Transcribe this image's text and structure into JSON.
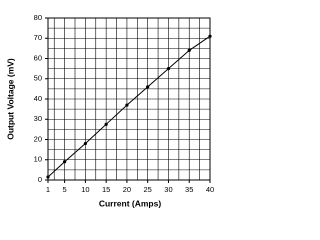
{
  "chart_data": {
    "type": "line",
    "x_label": "Current (Amps)",
    "y_label": "Output Voltage (mV)",
    "series": [
      {
        "color": "#000000",
        "x": [
          1,
          5,
          10,
          15,
          20,
          25,
          30,
          35,
          40
        ],
        "values": [
          1.5,
          9,
          18,
          27.5,
          37,
          46,
          55,
          64,
          71
        ]
      }
    ],
    "xlim": [
      1,
      40
    ],
    "xticks": [
      1,
      5,
      10,
      15,
      20,
      25,
      30,
      35,
      40
    ],
    "ylim": [
      0,
      80
    ],
    "yticks": [
      0,
      10,
      20,
      30,
      40,
      50,
      60,
      70,
      80
    ],
    "xgrid": [
      2.5,
      5,
      7.5,
      10,
      12.5,
      15,
      17.5,
      20,
      22.5,
      25,
      27.5,
      30,
      32.5,
      35,
      37.5
    ],
    "ygrid": [
      5,
      10,
      15,
      20,
      25,
      30,
      35,
      40,
      45,
      50,
      55,
      60,
      65,
      70,
      75
    ],
    "grid": true
  }
}
